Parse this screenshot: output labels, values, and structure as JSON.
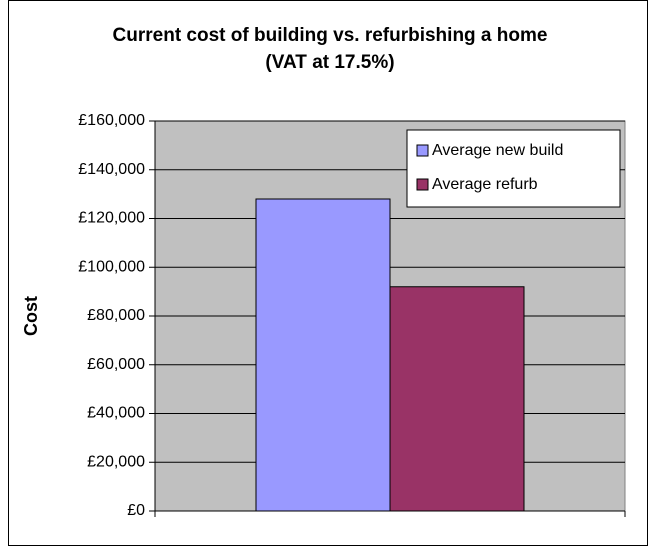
{
  "chart_data": {
    "type": "bar",
    "title": "Current cost of building vs. refurbishing a home (VAT at 17.5%)",
    "y_label": "Cost",
    "categories": [
      null
    ],
    "series": [
      {
        "name": "Average new build",
        "color": "#9999ff",
        "values": [
          128000
        ]
      },
      {
        "name": "Average refurb",
        "color": "#993366",
        "values": [
          92000
        ]
      }
    ],
    "ylim": [
      0,
      160000
    ],
    "yticks": [
      {
        "value": 0,
        "label": "£0"
      },
      {
        "value": 20000,
        "label": "£20,000"
      },
      {
        "value": 40000,
        "label": "£40,000"
      },
      {
        "value": 60000,
        "label": "£60,000"
      },
      {
        "value": 80000,
        "label": "£80,000"
      },
      {
        "value": 100000,
        "label": "£100,000"
      },
      {
        "value": 120000,
        "label": "£120,000"
      },
      {
        "value": 140000,
        "label": "£140,000"
      },
      {
        "value": 160000,
        "label": "£160,000"
      }
    ],
    "grid": true,
    "legend": "upper right"
  }
}
